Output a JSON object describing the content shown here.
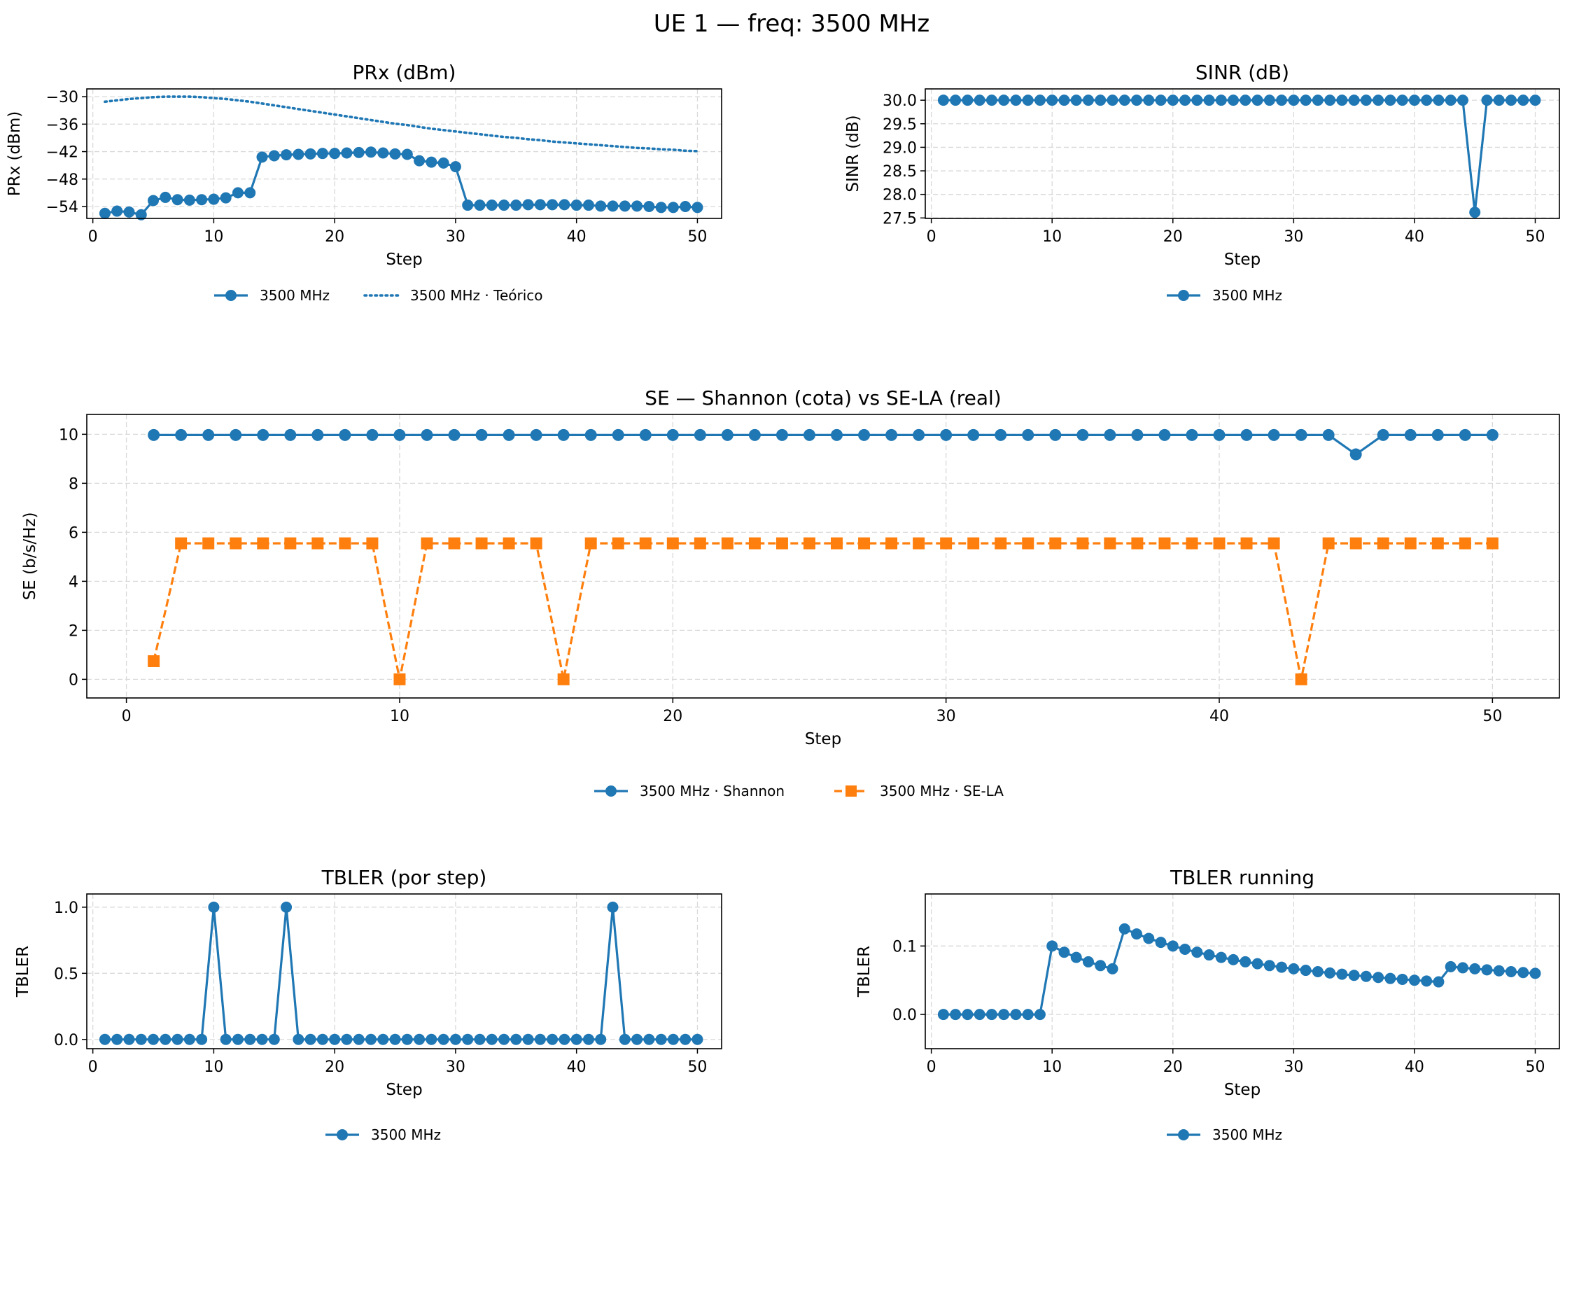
{
  "figure": {
    "title": "UE 1 — freq: 3500 MHz"
  },
  "colors": {
    "blue": "#1f77b4",
    "orange": "#ff7f0e"
  },
  "chart_data": [
    {
      "id": "prx",
      "type": "line",
      "title": "PRx (dBm)",
      "xlabel": "Step",
      "ylabel": "PRx (dBm)",
      "xlim": [
        -0.5,
        52.0
      ],
      "ylim": [
        -56.6,
        -28.3
      ],
      "xticks": [
        0,
        10,
        20,
        30,
        40,
        50
      ],
      "yticks": [
        -54,
        -48,
        -42,
        -36,
        -30
      ],
      "grid": true,
      "legend": "below",
      "series": [
        {
          "name": "3500 MHz",
          "style": "line-marker-circle",
          "color": "#1f77b4",
          "x": [
            1,
            2,
            3,
            4,
            5,
            6,
            7,
            8,
            9,
            10,
            11,
            12,
            13,
            14,
            15,
            16,
            17,
            18,
            19,
            20,
            21,
            22,
            23,
            24,
            25,
            26,
            27,
            28,
            29,
            30,
            31,
            32,
            33,
            34,
            35,
            36,
            37,
            38,
            39,
            40,
            41,
            42,
            43,
            44,
            45,
            46,
            47,
            48,
            49,
            50
          ],
          "y": [
            -55.5,
            -55,
            -55.2,
            -55.8,
            -52.7,
            -52,
            -52.5,
            -52.6,
            -52.5,
            -52.4,
            -52.1,
            -51,
            -51,
            -43.2,
            -42.9,
            -42.7,
            -42.6,
            -42.5,
            -42.4,
            -42.4,
            -42.3,
            -42.2,
            -42.1,
            -42.3,
            -42.5,
            -42.6,
            -44,
            -44.3,
            -44.5,
            -45.3,
            -53.7,
            -53.7,
            -53.7,
            -53.7,
            -53.7,
            -53.6,
            -53.6,
            -53.6,
            -53.6,
            -53.7,
            -53.7,
            -53.9,
            -53.9,
            -53.9,
            -53.9,
            -54,
            -54.2,
            -54.2,
            -54,
            -54.2
          ]
        },
        {
          "name": "3500 MHz · Teórico",
          "style": "dotted",
          "color": "#1f77b4",
          "x": [
            1,
            2,
            3,
            4,
            5,
            6,
            7,
            8,
            9,
            10,
            11,
            12,
            13,
            14,
            15,
            16,
            17,
            18,
            19,
            20,
            21,
            22,
            23,
            24,
            25,
            26,
            27,
            28,
            29,
            30,
            31,
            32,
            33,
            34,
            35,
            36,
            37,
            38,
            39,
            40,
            41,
            42,
            43,
            44,
            45,
            46,
            47,
            48,
            49,
            50
          ],
          "y": [
            -31.1,
            -30.8,
            -30.5,
            -30.3,
            -30.1,
            -30,
            -30,
            -30,
            -30.1,
            -30.3,
            -30.5,
            -30.8,
            -31.1,
            -31.5,
            -31.9,
            -32.3,
            -32.7,
            -33.1,
            -33.5,
            -33.9,
            -34.3,
            -34.7,
            -35.1,
            -35.5,
            -35.9,
            -36.2,
            -36.6,
            -37,
            -37.3,
            -37.6,
            -37.9,
            -38.2,
            -38.5,
            -38.8,
            -39,
            -39.3,
            -39.5,
            -39.8,
            -40,
            -40.2,
            -40.4,
            -40.6,
            -40.8,
            -41,
            -41.2,
            -41.3,
            -41.5,
            -41.6,
            -41.8,
            -41.9
          ]
        }
      ]
    },
    {
      "id": "sinr",
      "type": "line",
      "title": "SINR (dB)",
      "xlabel": "Step",
      "ylabel": "SINR (dB)",
      "xlim": [
        -0.5,
        52.0
      ],
      "ylim": [
        27.49,
        30.24
      ],
      "xticks": [
        0,
        10,
        20,
        30,
        40,
        50
      ],
      "yticks": [
        27.5,
        28.0,
        28.5,
        29.0,
        29.5,
        30.0
      ],
      "ytick_labels": [
        "27.5",
        "28.0",
        "28.5",
        "29.0",
        "29.5",
        "30.0"
      ],
      "grid": true,
      "legend": "below",
      "series": [
        {
          "name": "3500 MHz",
          "style": "line-marker-circle",
          "color": "#1f77b4",
          "x": [
            1,
            2,
            3,
            4,
            5,
            6,
            7,
            8,
            9,
            10,
            11,
            12,
            13,
            14,
            15,
            16,
            17,
            18,
            19,
            20,
            21,
            22,
            23,
            24,
            25,
            26,
            27,
            28,
            29,
            30,
            31,
            32,
            33,
            34,
            35,
            36,
            37,
            38,
            39,
            40,
            41,
            42,
            43,
            44,
            45,
            46,
            47,
            48,
            49,
            50
          ],
          "y": [
            30,
            30,
            30,
            30,
            30,
            30,
            30,
            30,
            30,
            30,
            30,
            30,
            30,
            30,
            30,
            30,
            30,
            30,
            30,
            30,
            30,
            30,
            30,
            30,
            30,
            30,
            30,
            30,
            30,
            30,
            30,
            30,
            30,
            30,
            30,
            30,
            30,
            30,
            30,
            30,
            30,
            30,
            30,
            30,
            27.62,
            30,
            30,
            30,
            30,
            30
          ]
        }
      ]
    },
    {
      "id": "se",
      "type": "line",
      "title": "SE — Shannon (cota) vs SE-LA (real)",
      "xlabel": "Step",
      "ylabel": "SE (b/s/Hz)",
      "xlim": [
        -1.45,
        52.45
      ],
      "ylim": [
        -0.76,
        10.81
      ],
      "xticks": [
        0,
        10,
        20,
        30,
        40,
        50
      ],
      "yticks": [
        0,
        2,
        4,
        6,
        8,
        10
      ],
      "grid": true,
      "legend": "below",
      "series": [
        {
          "name": "3500 MHz · Shannon",
          "style": "line-marker-circle",
          "color": "#1f77b4",
          "x": [
            1,
            2,
            3,
            4,
            5,
            6,
            7,
            8,
            9,
            10,
            11,
            12,
            13,
            14,
            15,
            16,
            17,
            18,
            19,
            20,
            21,
            22,
            23,
            24,
            25,
            26,
            27,
            28,
            29,
            30,
            31,
            32,
            33,
            34,
            35,
            36,
            37,
            38,
            39,
            40,
            41,
            42,
            43,
            44,
            45,
            46,
            47,
            48,
            49,
            50
          ],
          "y": [
            9.97,
            9.97,
            9.97,
            9.97,
            9.97,
            9.97,
            9.97,
            9.97,
            9.97,
            9.97,
            9.97,
            9.97,
            9.97,
            9.97,
            9.97,
            9.97,
            9.97,
            9.97,
            9.97,
            9.97,
            9.97,
            9.97,
            9.97,
            9.97,
            9.97,
            9.97,
            9.97,
            9.97,
            9.97,
            9.97,
            9.97,
            9.97,
            9.97,
            9.97,
            9.97,
            9.97,
            9.97,
            9.97,
            9.97,
            9.97,
            9.97,
            9.97,
            9.97,
            9.97,
            9.18,
            9.97,
            9.97,
            9.97,
            9.97,
            9.97
          ]
        },
        {
          "name": "3500 MHz · SE-LA",
          "style": "dashed-marker-square",
          "color": "#ff7f0e",
          "x": [
            1,
            2,
            3,
            4,
            5,
            6,
            7,
            8,
            9,
            10,
            11,
            12,
            13,
            14,
            15,
            16,
            17,
            18,
            19,
            20,
            21,
            22,
            23,
            24,
            25,
            26,
            27,
            28,
            29,
            30,
            31,
            32,
            33,
            34,
            35,
            36,
            37,
            38,
            39,
            40,
            41,
            42,
            43,
            44,
            45,
            46,
            47,
            48,
            49,
            50
          ],
          "y": [
            0.74,
            5.55,
            5.55,
            5.55,
            5.55,
            5.55,
            5.55,
            5.55,
            5.55,
            0,
            5.55,
            5.55,
            5.55,
            5.55,
            5.55,
            0,
            5.55,
            5.55,
            5.55,
            5.55,
            5.55,
            5.55,
            5.55,
            5.55,
            5.55,
            5.55,
            5.55,
            5.55,
            5.55,
            5.55,
            5.55,
            5.55,
            5.55,
            5.55,
            5.55,
            5.55,
            5.55,
            5.55,
            5.55,
            5.55,
            5.55,
            5.55,
            0,
            5.55,
            5.55,
            5.55,
            5.55,
            5.55,
            5.55,
            5.55
          ]
        }
      ]
    },
    {
      "id": "tbler_step",
      "type": "line",
      "title": "TBLER (por step)",
      "xlabel": "Step",
      "ylabel": "TBLER",
      "xlim": [
        -0.5,
        52.0
      ],
      "ylim": [
        -0.07,
        1.1
      ],
      "xticks": [
        0,
        10,
        20,
        30,
        40,
        50
      ],
      "yticks": [
        0.0,
        0.5,
        1.0
      ],
      "ytick_labels": [
        "0.0",
        "0.5",
        "1.0"
      ],
      "grid": true,
      "legend": "below",
      "series": [
        {
          "name": "3500 MHz",
          "style": "line-marker-circle",
          "color": "#1f77b4",
          "x": [
            1,
            2,
            3,
            4,
            5,
            6,
            7,
            8,
            9,
            10,
            11,
            12,
            13,
            14,
            15,
            16,
            17,
            18,
            19,
            20,
            21,
            22,
            23,
            24,
            25,
            26,
            27,
            28,
            29,
            30,
            31,
            32,
            33,
            34,
            35,
            36,
            37,
            38,
            39,
            40,
            41,
            42,
            43,
            44,
            45,
            46,
            47,
            48,
            49,
            50
          ],
          "y": [
            0,
            0,
            0,
            0,
            0,
            0,
            0,
            0,
            0,
            1,
            0,
            0,
            0,
            0,
            0,
            1,
            0,
            0,
            0,
            0,
            0,
            0,
            0,
            0,
            0,
            0,
            0,
            0,
            0,
            0,
            0,
            0,
            0,
            0,
            0,
            0,
            0,
            0,
            0,
            0,
            0,
            0,
            1,
            0,
            0,
            0,
            0,
            0,
            0,
            0
          ]
        }
      ]
    },
    {
      "id": "tbler_running",
      "type": "line",
      "title": "TBLER running",
      "xlabel": "Step",
      "ylabel": "TBLER",
      "xlim": [
        -0.5,
        52.0
      ],
      "ylim": [
        -0.05,
        0.176
      ],
      "xticks": [
        0,
        10,
        20,
        30,
        40,
        50
      ],
      "yticks": [
        0.0,
        0.1
      ],
      "ytick_labels": [
        "0.0",
        "0.1"
      ],
      "grid": true,
      "legend": "below",
      "series": [
        {
          "name": "3500 MHz",
          "style": "line-marker-circle",
          "color": "#1f77b4",
          "x": [
            1,
            2,
            3,
            4,
            5,
            6,
            7,
            8,
            9,
            10,
            11,
            12,
            13,
            14,
            15,
            16,
            17,
            18,
            19,
            20,
            21,
            22,
            23,
            24,
            25,
            26,
            27,
            28,
            29,
            30,
            31,
            32,
            33,
            34,
            35,
            36,
            37,
            38,
            39,
            40,
            41,
            42,
            43,
            44,
            45,
            46,
            47,
            48,
            49,
            50
          ],
          "y": [
            0,
            0,
            0,
            0,
            0,
            0,
            0,
            0,
            0,
            0.1,
            0.0909,
            0.0833,
            0.0769,
            0.0714,
            0.0667,
            0.125,
            0.1176,
            0.1111,
            0.1053,
            0.1,
            0.0952,
            0.0909,
            0.087,
            0.0833,
            0.08,
            0.0769,
            0.0741,
            0.0714,
            0.069,
            0.0667,
            0.0645,
            0.0625,
            0.0606,
            0.0588,
            0.0571,
            0.0556,
            0.0541,
            0.0526,
            0.0513,
            0.05,
            0.0488,
            0.0476,
            0.0698,
            0.0682,
            0.0667,
            0.0652,
            0.0638,
            0.0625,
            0.0612,
            0.06
          ]
        }
      ]
    }
  ]
}
